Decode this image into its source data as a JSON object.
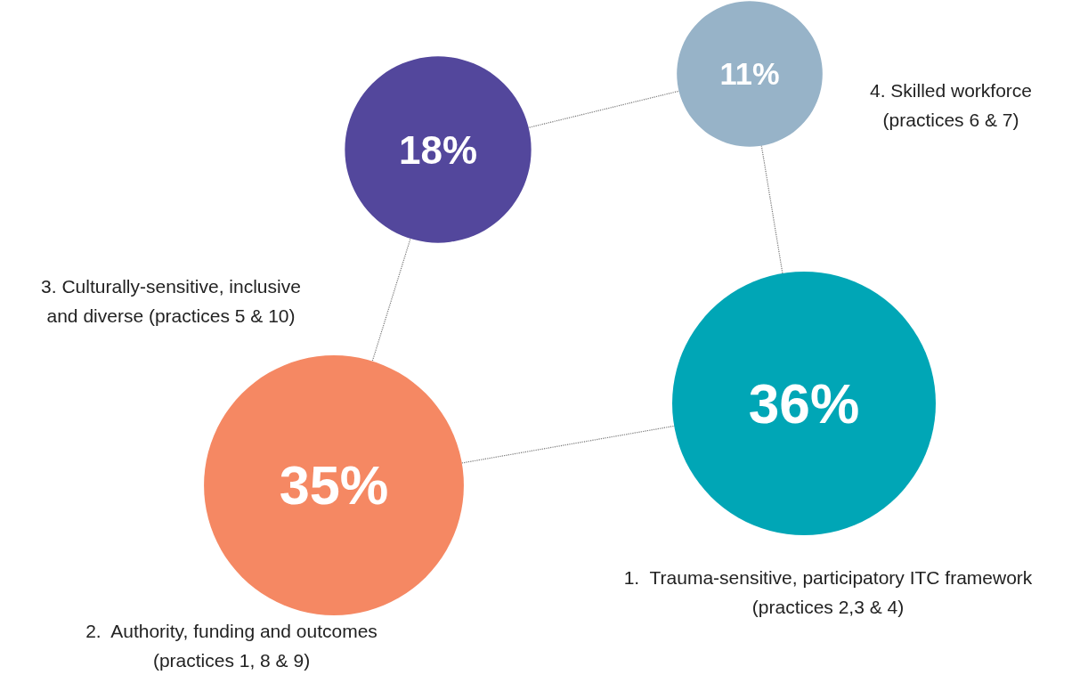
{
  "chart_data": {
    "type": "other",
    "categories": [
      "1.  Trauma-sensitive, participatory ITC framework\n(practices 2,3 & 4)",
      "2.  Authority, funding and outcomes\n(practices 1, 8 & 9)",
      "3. Culturally-sensitive, inclusive\nand diverse (practices 5 & 10)",
      "4. Skilled workforce\n(practices 6 & 7)"
    ],
    "values": [
      36,
      35,
      18,
      11
    ],
    "value_labels": [
      "36%",
      "35%",
      "18%",
      "11%"
    ],
    "colors": [
      "#00a6b6",
      "#f58863",
      "#53479c",
      "#97b3c8"
    ]
  }
}
